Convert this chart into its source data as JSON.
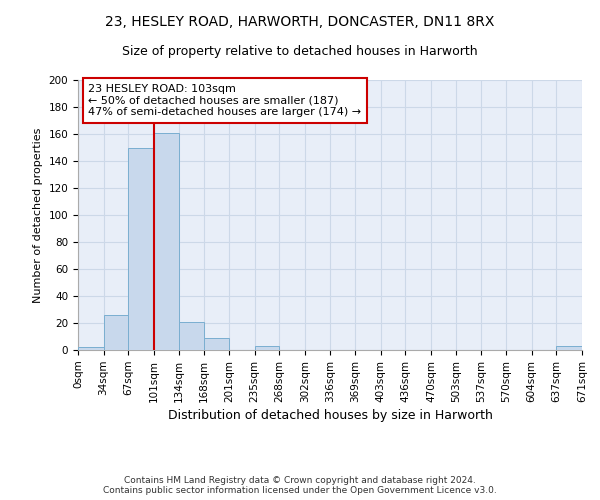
{
  "title": "23, HESLEY ROAD, HARWORTH, DONCASTER, DN11 8RX",
  "subtitle": "Size of property relative to detached houses in Harworth",
  "xlabel": "Distribution of detached houses by size in Harworth",
  "ylabel": "Number of detached properties",
  "bin_edges": [
    0,
    34,
    67,
    101,
    134,
    168,
    201,
    235,
    268,
    302,
    336,
    369,
    403,
    436,
    470,
    503,
    537,
    570,
    604,
    637,
    671
  ],
  "bin_counts": [
    2,
    26,
    150,
    161,
    21,
    9,
    0,
    3,
    0,
    0,
    0,
    0,
    0,
    0,
    0,
    0,
    0,
    0,
    0,
    3
  ],
  "bar_color": "#c8d8ec",
  "bar_edge_color": "#7aaed0",
  "grid_color": "#ccd8e8",
  "background_color": "#e8eef8",
  "red_line_x": 101,
  "annotation_text": "23 HESLEY ROAD: 103sqm\n← 50% of detached houses are smaller (187)\n47% of semi-detached houses are larger (174) →",
  "annotation_box_color": "white",
  "annotation_box_edge_color": "#cc0000",
  "ylim": [
    0,
    200
  ],
  "yticks": [
    0,
    20,
    40,
    60,
    80,
    100,
    120,
    140,
    160,
    180,
    200
  ],
  "xtick_labels": [
    "0sqm",
    "34sqm",
    "67sqm",
    "101sqm",
    "134sqm",
    "168sqm",
    "201sqm",
    "235sqm",
    "268sqm",
    "302sqm",
    "336sqm",
    "369sqm",
    "403sqm",
    "436sqm",
    "470sqm",
    "503sqm",
    "537sqm",
    "570sqm",
    "604sqm",
    "637sqm",
    "671sqm"
  ],
  "footer_text": "Contains HM Land Registry data © Crown copyright and database right 2024.\nContains public sector information licensed under the Open Government Licence v3.0.",
  "title_fontsize": 10,
  "subtitle_fontsize": 9,
  "xlabel_fontsize": 9,
  "ylabel_fontsize": 8,
  "tick_fontsize": 7.5,
  "annotation_fontsize": 8,
  "footer_fontsize": 6.5
}
